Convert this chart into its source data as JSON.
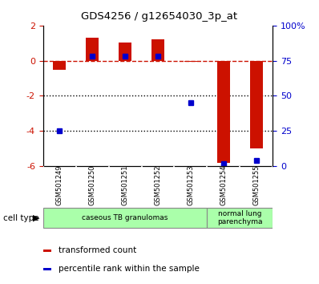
{
  "title": "GDS4256 / g12654030_3p_at",
  "samples": [
    "GSM501249",
    "GSM501250",
    "GSM501251",
    "GSM501252",
    "GSM501253",
    "GSM501254",
    "GSM501255"
  ],
  "red_values": [
    -0.5,
    1.3,
    1.05,
    1.2,
    -0.05,
    -5.8,
    -5.0
  ],
  "blue_values": [
    25,
    78,
    78,
    78,
    45,
    2,
    4
  ],
  "ylim_left": [
    -6,
    2
  ],
  "ylim_right": [
    0,
    100
  ],
  "yticks_left": [
    -6,
    -4,
    -2,
    0,
    2
  ],
  "yticks_right": [
    0,
    25,
    50,
    75,
    100
  ],
  "ytick_labels_right": [
    "0",
    "25",
    "50",
    "75",
    "100%"
  ],
  "ytick_labels_left": [
    "-6",
    "-4",
    "-2",
    "0",
    "2"
  ],
  "red_color": "#cc1100",
  "blue_color": "#0000cc",
  "dashed_color": "#cc1100",
  "dotted_color": "#000000",
  "bar_width": 0.4,
  "cell_type_label": "cell type",
  "group_defs": [
    {
      "start": 0,
      "end": 4,
      "label": "caseous TB granulomas",
      "color": "#aaffaa"
    },
    {
      "start": 5,
      "end": 6,
      "label": "normal lung\nparenchyma",
      "color": "#aaffaa"
    }
  ],
  "legend_items": [
    {
      "label": "transformed count",
      "color": "#cc1100"
    },
    {
      "label": "percentile rank within the sample",
      "color": "#0000cc"
    }
  ],
  "bg_color": "#ffffff",
  "plot_bg": "#ffffff",
  "tick_label_area_bg": "#c8c8c8",
  "figsize": [
    3.98,
    3.54
  ],
  "dpi": 100
}
